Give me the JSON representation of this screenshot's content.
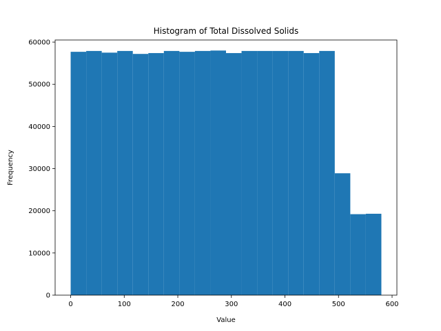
{
  "chart_data": {
    "type": "bar",
    "title": "Histogram of Total Dissolved Solids",
    "xlabel": "Value",
    "ylabel": "Frequency",
    "bar_color": "#1f77b4",
    "grid": false,
    "xlim": [
      -29,
      609
    ],
    "ylim": [
      0,
      60500
    ],
    "xticks": [
      0,
      100,
      200,
      300,
      400,
      500,
      600
    ],
    "yticks": [
      0,
      10000,
      20000,
      30000,
      40000,
      50000,
      60000
    ],
    "bins": [
      {
        "x0": 0,
        "x1": 29,
        "value": 57700
      },
      {
        "x0": 29,
        "x1": 58,
        "value": 57900
      },
      {
        "x0": 58,
        "x1": 87,
        "value": 57500
      },
      {
        "x0": 87,
        "x1": 116,
        "value": 57900
      },
      {
        "x0": 116,
        "x1": 145,
        "value": 57200
      },
      {
        "x0": 145,
        "x1": 174,
        "value": 57400
      },
      {
        "x0": 174,
        "x1": 203,
        "value": 57900
      },
      {
        "x0": 203,
        "x1": 232,
        "value": 57700
      },
      {
        "x0": 232,
        "x1": 261,
        "value": 57900
      },
      {
        "x0": 261,
        "x1": 290,
        "value": 58000
      },
      {
        "x0": 290,
        "x1": 319,
        "value": 57400
      },
      {
        "x0": 319,
        "x1": 348,
        "value": 57900
      },
      {
        "x0": 348,
        "x1": 377,
        "value": 57900
      },
      {
        "x0": 377,
        "x1": 406,
        "value": 57900
      },
      {
        "x0": 406,
        "x1": 435,
        "value": 57900
      },
      {
        "x0": 435,
        "x1": 464,
        "value": 57400
      },
      {
        "x0": 464,
        "x1": 493,
        "value": 57900
      },
      {
        "x0": 493,
        "x1": 522,
        "value": 28900
      },
      {
        "x0": 522,
        "x1": 551,
        "value": 19200
      },
      {
        "x0": 551,
        "x1": 580,
        "value": 19300
      }
    ]
  }
}
